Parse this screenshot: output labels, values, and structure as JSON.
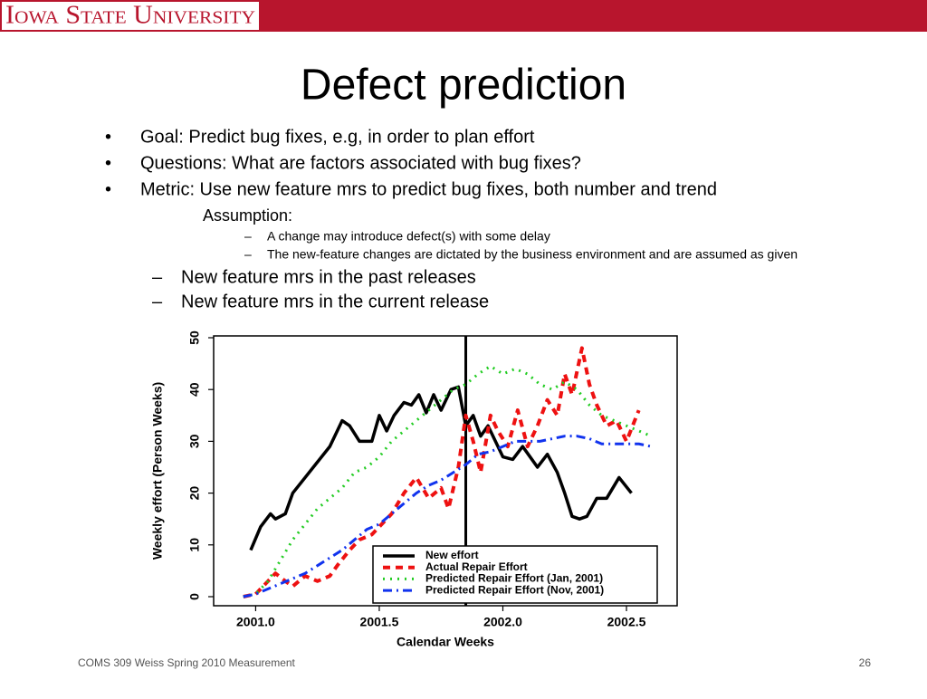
{
  "header": {
    "logo": "Iowa State University"
  },
  "title": "Defect prediction",
  "bullets": [
    "Goal: Predict bug fixes, e.g, in order to plan effort",
    "Questions: What are factors associated with bug fixes?",
    "Metric:  Use new feature mrs to predict bug fixes, both number and trend"
  ],
  "assumption": {
    "label": "Assumption:",
    "items": [
      "A change may introduce defect(s) with some delay",
      "The new-feature changes are dictated by the business environment and are assumed as given"
    ]
  },
  "sub_bullets": [
    "New feature mrs in the past releases",
    "New feature mrs in the current release"
  ],
  "chart_data": {
    "type": "line",
    "x_label": "Calendar Weeks",
    "y_label": "Weekly effort (Person Weeks)",
    "xlim": [
      2000.83,
      2002.705
    ],
    "xticks": [
      {
        "value": 2001,
        "label": "2001.0"
      },
      2001.5,
      {
        "value": 2002,
        "label": "2002.0"
      },
      2002.5
    ],
    "ylim": [
      -1.75,
      50.35
    ],
    "yticks": [
      0,
      10,
      20,
      30,
      40,
      50
    ],
    "vline": 2001.85,
    "legend": "lower right",
    "series": [
      {
        "name": "New effort",
        "color": "#000000",
        "style": "solid",
        "x": [
          2000.98,
          2001.02,
          2001.06,
          2001.08,
          2001.12,
          2001.15,
          2001.2,
          2001.25,
          2001.3,
          2001.35,
          2001.38,
          2001.42,
          2001.47,
          2001.5,
          2001.53,
          2001.56,
          2001.6,
          2001.63,
          2001.66,
          2001.69,
          2001.72,
          2001.75,
          2001.79,
          2001.82,
          2001.85,
          2001.88,
          2001.91,
          2001.94,
          2001.97,
          2002.0,
          2002.04,
          2002.08,
          2002.11,
          2002.14,
          2002.18,
          2002.22,
          2002.25,
          2002.28,
          2002.31,
          2002.34,
          2002.38,
          2002.42,
          2002.47,
          2002.52
        ],
        "values": [
          9,
          13.5,
          16,
          15,
          16,
          20,
          23,
          26,
          29,
          34,
          33,
          30,
          30,
          35,
          32,
          35,
          37.5,
          37,
          39,
          35.5,
          39,
          36,
          40,
          40.5,
          33,
          35,
          31,
          33,
          30,
          27,
          26.5,
          29,
          27,
          25,
          27.5,
          24,
          20,
          15.5,
          15,
          15.5,
          19,
          19,
          23,
          20
        ]
      },
      {
        "name": "Actual Repair Effort",
        "color": "#ee1111",
        "style": "dashed",
        "x": [
          2000.95,
          2001.0,
          2001.05,
          2001.08,
          2001.12,
          2001.15,
          2001.2,
          2001.25,
          2001.3,
          2001.33,
          2001.38,
          2001.42,
          2001.47,
          2001.5,
          2001.55,
          2001.6,
          2001.65,
          2001.7,
          2001.75,
          2001.78,
          2001.82,
          2001.85,
          2001.88,
          2001.91,
          2001.95,
          2001.98,
          2002.02,
          2002.06,
          2002.1,
          2002.14,
          2002.18,
          2002.22,
          2002.25,
          2002.28,
          2002.32,
          2002.35,
          2002.38,
          2002.42,
          2002.46,
          2002.5,
          2002.55
        ],
        "values": [
          0,
          0.5,
          3,
          4.5,
          3,
          2,
          4,
          3,
          4,
          6,
          9,
          11,
          12,
          13.5,
          16,
          20,
          23,
          19,
          21,
          17,
          25,
          35,
          30,
          24,
          35,
          32,
          29,
          36,
          29,
          33,
          38,
          35,
          43,
          39,
          48,
          41,
          37,
          33,
          34,
          30,
          36
        ]
      },
      {
        "name": "Predicted Repair Effort (Jan, 2001)",
        "color": "#22cc22",
        "style": "dotted",
        "x": [
          2000.95,
          2001.0,
          2001.05,
          2001.1,
          2001.15,
          2001.2,
          2001.25,
          2001.3,
          2001.35,
          2001.4,
          2001.45,
          2001.5,
          2001.55,
          2001.6,
          2001.65,
          2001.7,
          2001.75,
          2001.8,
          2001.85,
          2001.9,
          2001.95,
          2002.0,
          2002.05,
          2002.1,
          2002.15,
          2002.2,
          2002.25,
          2002.3,
          2002.35,
          2002.4,
          2002.45,
          2002.5,
          2002.55,
          2002.6
        ],
        "values": [
          0,
          0.5,
          3,
          7,
          11,
          14,
          17,
          19,
          21,
          24,
          25,
          27,
          30,
          32,
          34,
          36,
          38,
          40,
          41,
          43,
          44.5,
          43,
          44,
          43,
          41,
          40,
          41.5,
          40,
          37,
          35,
          34,
          33,
          32,
          31
        ]
      },
      {
        "name": "Predicted Repair Effort (Nov, 2001)",
        "color": "#1133ee",
        "style": "dashdot",
        "x": [
          2000.95,
          2001.0,
          2001.05,
          2001.1,
          2001.15,
          2001.2,
          2001.25,
          2001.3,
          2001.35,
          2001.4,
          2001.45,
          2001.5,
          2001.55,
          2001.6,
          2001.65,
          2001.7,
          2001.75,
          2001.8,
          2001.85,
          2001.9,
          2001.95,
          2002.0,
          2002.05,
          2002.1,
          2002.15,
          2002.2,
          2002.25,
          2002.3,
          2002.35,
          2002.4,
          2002.45,
          2002.5,
          2002.55,
          2002.6
        ],
        "values": [
          0,
          0.5,
          1.5,
          2.5,
          3.5,
          4.5,
          6,
          7.5,
          9,
          11,
          13,
          14,
          16,
          18,
          20,
          21.5,
          22.5,
          24,
          25.5,
          27.5,
          28,
          29,
          30,
          30,
          30,
          30.5,
          31,
          31,
          30.5,
          29.5,
          29.5,
          29.5,
          29.5,
          29
        ]
      }
    ]
  },
  "footer": {
    "text": "COMS 309 Weiss Spring 2010 Measurement",
    "page": "26"
  }
}
